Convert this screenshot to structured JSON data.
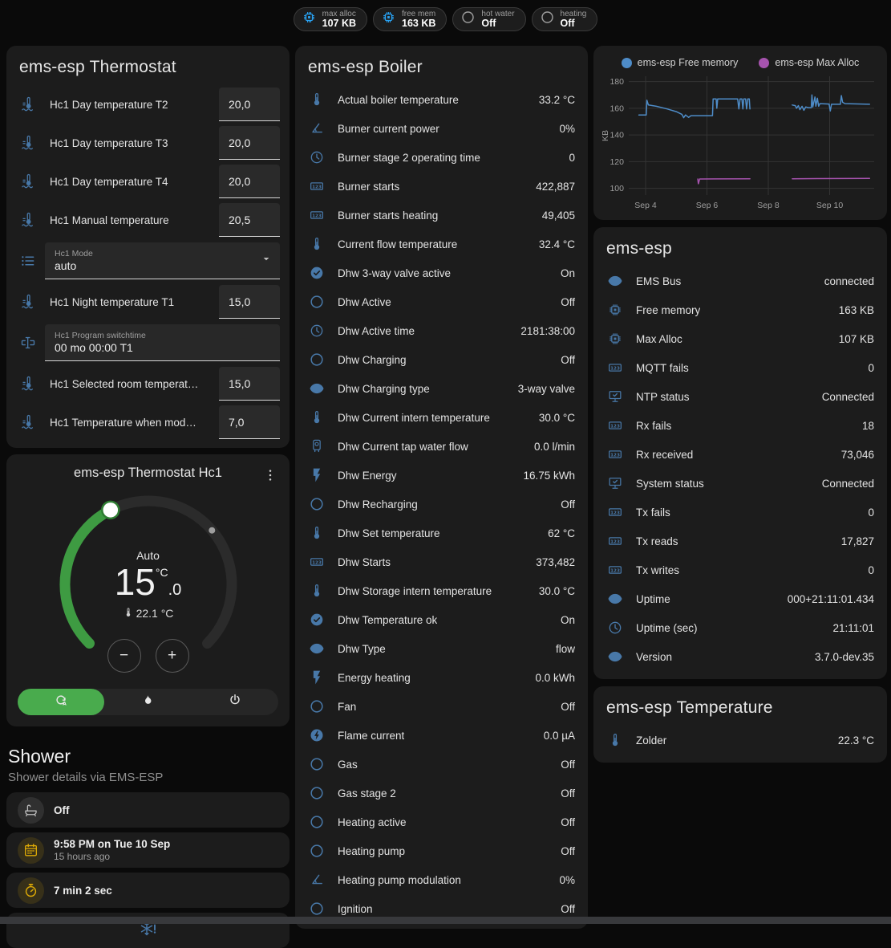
{
  "colors": {
    "icon_blue": "#4878a8",
    "chip_blue": "#29a3f4",
    "chip_gray": "#9e9e9e",
    "amber": "#deaa06",
    "gray_icon": "#bdbdbd",
    "green_arc": "#3e9b42",
    "green_pill": "#49ab4d",
    "white_icon": "#e8e8e8",
    "snowflake_blue": "#4878a8"
  },
  "top_chips": [
    {
      "label": "max alloc",
      "value": "107 KB",
      "icon": "chip",
      "icon_color": "#29a3f4"
    },
    {
      "label": "free mem",
      "value": "163 KB",
      "icon": "chip",
      "icon_color": "#29a3f4"
    },
    {
      "label": "hot water",
      "value": "Off",
      "icon": "circle",
      "icon_color": "#9e9e9e"
    },
    {
      "label": "heating",
      "value": "Off",
      "icon": "circle",
      "icon_color": "#9e9e9e"
    }
  ],
  "thermostat_card": {
    "title": "ems-esp Thermostat",
    "rows": [
      {
        "type": "number",
        "icon": "thermo-waves",
        "label": "Hc1 Day temperature T2",
        "value": "20,0"
      },
      {
        "type": "number",
        "icon": "thermo-waves",
        "label": "Hc1 Day temperature T3",
        "value": "20,0"
      },
      {
        "type": "number",
        "icon": "thermo-waves",
        "label": "Hc1 Day temperature T4",
        "value": "20,0"
      },
      {
        "type": "number",
        "icon": "thermo-waves",
        "label": "Hc1 Manual temperature",
        "value": "20,5"
      },
      {
        "type": "select",
        "icon": "list",
        "label": "Hc1 Mode",
        "value": "auto"
      },
      {
        "type": "number",
        "icon": "thermo-waves",
        "label": "Hc1 Night temperature T1",
        "value": "15,0"
      },
      {
        "type": "text",
        "icon": "form-textbox",
        "label": "Hc1 Program switchtime",
        "value": "00 mo 00:00 T1"
      },
      {
        "type": "number",
        "icon": "thermo-waves",
        "label": "Hc1 Selected room temperat…",
        "value": "15,0"
      },
      {
        "type": "number",
        "icon": "thermo-waves",
        "label": "Hc1 Temperature when mod…",
        "value": "7,0"
      }
    ]
  },
  "dial_card": {
    "title": "ems-esp Thermostat Hc1",
    "hvac_label": "Auto",
    "target_display": {
      "int": "15",
      "unit": "°C",
      "dec": ".0"
    },
    "current_display": "22.1 °C",
    "decrease_label": "−",
    "increase_label": "+",
    "slider": {
      "min": 5,
      "max": 30,
      "target": 15.0,
      "current": 22.1
    },
    "modes": [
      {
        "icon": "auto",
        "selected": true
      },
      {
        "icon": "fire",
        "selected": false
      },
      {
        "icon": "power",
        "selected": false
      }
    ]
  },
  "shower": {
    "title": "Shower",
    "subtitle": "Shower details via EMS-ESP",
    "tiles": [
      {
        "icon": "bathtub",
        "icon_color": "#bdbdbd",
        "badge_bg": "rgba(158,158,158,0.16)",
        "primary": "Off",
        "secondary": ""
      },
      {
        "icon": "calendar",
        "icon_color": "#deaa06",
        "badge_bg": "rgba(222,170,6,0.14)",
        "primary": "9:58 PM on Tue 10 Sep",
        "secondary": "15 hours ago"
      },
      {
        "icon": "timer",
        "icon_color": "#deaa06",
        "badge_bg": "rgba(222,170,6,0.14)",
        "primary": "7 min 2 sec",
        "secondary": ""
      },
      {
        "icon": "snowflake-alert",
        "icon_color": "#4878a8",
        "badge_bg": "none",
        "primary": "",
        "secondary": "",
        "centered": true
      }
    ]
  },
  "boiler_card": {
    "title": "ems-esp Boiler",
    "rows": [
      {
        "icon": "thermometer",
        "label": "Actual boiler temperature",
        "value": "33.2 °C"
      },
      {
        "icon": "angle",
        "label": "Burner current power",
        "value": "0%"
      },
      {
        "icon": "clock",
        "label": "Burner stage 2 operating time",
        "value": "0"
      },
      {
        "icon": "counter",
        "label": "Burner starts",
        "value": "422,887"
      },
      {
        "icon": "counter",
        "label": "Burner starts heating",
        "value": "49,405"
      },
      {
        "icon": "thermometer",
        "label": "Current flow temperature",
        "value": "32.4 °C"
      },
      {
        "icon": "check-circle",
        "label": "Dhw 3-way valve active",
        "value": "On"
      },
      {
        "icon": "circle",
        "label": "Dhw Active",
        "value": "Off"
      },
      {
        "icon": "clock",
        "label": "Dhw Active time",
        "value": "2181:38:00"
      },
      {
        "icon": "circle",
        "label": "Dhw Charging",
        "value": "Off"
      },
      {
        "icon": "eye",
        "label": "Dhw Charging type",
        "value": "3-way valve"
      },
      {
        "icon": "thermometer",
        "label": "Dhw Current intern temperature",
        "value": "30.0 °C"
      },
      {
        "icon": "boiler",
        "label": "Dhw Current tap water flow",
        "value": "0.0 l/min"
      },
      {
        "icon": "flash",
        "label": "Dhw Energy",
        "value": "16.75 kWh"
      },
      {
        "icon": "circle",
        "label": "Dhw Recharging",
        "value": "Off"
      },
      {
        "icon": "thermometer",
        "label": "Dhw Set temperature",
        "value": "62 °C"
      },
      {
        "icon": "counter",
        "label": "Dhw Starts",
        "value": "373,482"
      },
      {
        "icon": "thermometer",
        "label": "Dhw Storage intern temperature",
        "value": "30.0 °C"
      },
      {
        "icon": "check-circle",
        "label": "Dhw Temperature ok",
        "value": "On"
      },
      {
        "icon": "eye",
        "label": "Dhw Type",
        "value": "flow"
      },
      {
        "icon": "flash",
        "label": "Energy heating",
        "value": "0.0 kWh"
      },
      {
        "icon": "circle",
        "label": "Fan",
        "value": "Off"
      },
      {
        "icon": "flash-circle",
        "label": "Flame current",
        "value": "0.0 µA"
      },
      {
        "icon": "circle",
        "label": "Gas",
        "value": "Off"
      },
      {
        "icon": "circle",
        "label": "Gas stage 2",
        "value": "Off"
      },
      {
        "icon": "circle",
        "label": "Heating active",
        "value": "Off"
      },
      {
        "icon": "circle",
        "label": "Heating pump",
        "value": "Off"
      },
      {
        "icon": "angle",
        "label": "Heating pump modulation",
        "value": "0%"
      },
      {
        "icon": "circle",
        "label": "Ignition",
        "value": "Off"
      }
    ]
  },
  "chart_data": {
    "type": "line",
    "title": "",
    "ylabel": "KB",
    "grid": true,
    "legend_position": "top",
    "x_range": [
      3.45,
      11.45
    ],
    "y_range": [
      95,
      184
    ],
    "y_ticks": [
      100,
      120,
      140,
      160,
      180
    ],
    "x_ticks": [
      {
        "pos": 4,
        "label": "Sep 4"
      },
      {
        "pos": 6,
        "label": "Sep 6"
      },
      {
        "pos": 8,
        "label": "Sep 8"
      },
      {
        "pos": 10,
        "label": "Sep 10"
      }
    ],
    "series": [
      {
        "name": "ems-esp Free memory",
        "color": "#4e8cc8",
        "segments": [
          [
            [
              3.78,
              155
            ],
            [
              4.02,
              155
            ],
            [
              4.04,
              166
            ],
            [
              4.09,
              162.5
            ],
            [
              4.35,
              161.5
            ],
            [
              4.7,
              159.5
            ],
            [
              5.0,
              157.5
            ],
            [
              5.18,
              155.5
            ],
            [
              5.24,
              153
            ],
            [
              5.3,
              155
            ],
            [
              5.4,
              153.2
            ],
            [
              5.48,
              154.5
            ],
            [
              6.18,
              154.5
            ],
            [
              6.2,
              167
            ],
            [
              6.3,
              167
            ],
            [
              6.32,
              160
            ],
            [
              6.35,
              167
            ],
            [
              7.0,
              167
            ],
            [
              7.04,
              159.5
            ],
            [
              7.08,
              167
            ],
            [
              7.14,
              167
            ],
            [
              7.17,
              159.5
            ],
            [
              7.2,
              167
            ],
            [
              7.26,
              167
            ],
            [
              7.29,
              159.5
            ],
            [
              7.33,
              167
            ],
            [
              7.38,
              167
            ],
            [
              7.4,
              159.5
            ]
          ],
          [
            [
              8.78,
              162.5
            ],
            [
              8.88,
              162
            ],
            [
              8.92,
              160
            ],
            [
              8.98,
              162
            ],
            [
              9.03,
              159
            ],
            [
              9.1,
              161.5
            ],
            [
              9.16,
              158.5
            ],
            [
              9.22,
              161
            ],
            [
              9.3,
              160.5
            ],
            [
              9.4,
              160.5
            ],
            [
              9.42,
              170
            ],
            [
              9.45,
              161
            ],
            [
              9.52,
              168.5
            ],
            [
              9.55,
              161.5
            ],
            [
              9.6,
              167.5
            ],
            [
              9.64,
              161.5
            ],
            [
              9.68,
              163.5
            ],
            [
              9.98,
              163.2
            ],
            [
              10.02,
              158
            ],
            [
              10.06,
              163
            ],
            [
              10.35,
              163
            ],
            [
              10.38,
              169.5
            ],
            [
              10.42,
              164.5
            ],
            [
              10.5,
              163.5
            ],
            [
              11.3,
              163
            ]
          ]
        ]
      },
      {
        "name": "ems-esp Max Alloc",
        "color": "#a653ae",
        "segments": [
          [
            [
              5.7,
              107
            ],
            [
              5.72,
              103.5
            ],
            [
              5.76,
              107
            ],
            [
              7.4,
              107.2
            ]
          ],
          [
            [
              8.78,
              107.2
            ],
            [
              11.3,
              107.5
            ]
          ]
        ]
      }
    ]
  },
  "emsesp_card": {
    "title": "ems-esp",
    "rows": [
      {
        "icon": "eye",
        "label": "EMS Bus",
        "value": "connected"
      },
      {
        "icon": "chip",
        "label": "Free memory",
        "value": "163 KB"
      },
      {
        "icon": "chip",
        "label": "Max Alloc",
        "value": "107 KB"
      },
      {
        "icon": "counter",
        "label": "MQTT fails",
        "value": "0"
      },
      {
        "icon": "desktop-check",
        "label": "NTP status",
        "value": "Connected"
      },
      {
        "icon": "counter",
        "label": "Rx fails",
        "value": "18"
      },
      {
        "icon": "counter",
        "label": "Rx received",
        "value": "73,046"
      },
      {
        "icon": "desktop-check",
        "label": "System status",
        "value": "Connected"
      },
      {
        "icon": "counter",
        "label": "Tx fails",
        "value": "0"
      },
      {
        "icon": "counter",
        "label": "Tx reads",
        "value": "17,827"
      },
      {
        "icon": "counter",
        "label": "Tx writes",
        "value": "0"
      },
      {
        "icon": "eye",
        "label": "Uptime",
        "value": "000+21:11:01.434"
      },
      {
        "icon": "clock",
        "label": "Uptime (sec)",
        "value": "21:11:01"
      },
      {
        "icon": "eye",
        "label": "Version",
        "value": "3.7.0-dev.35"
      }
    ]
  },
  "temperature_card": {
    "title": "ems-esp Temperature",
    "rows": [
      {
        "icon": "thermometer",
        "label": "Zolder",
        "value": "22.3 °C"
      }
    ]
  }
}
